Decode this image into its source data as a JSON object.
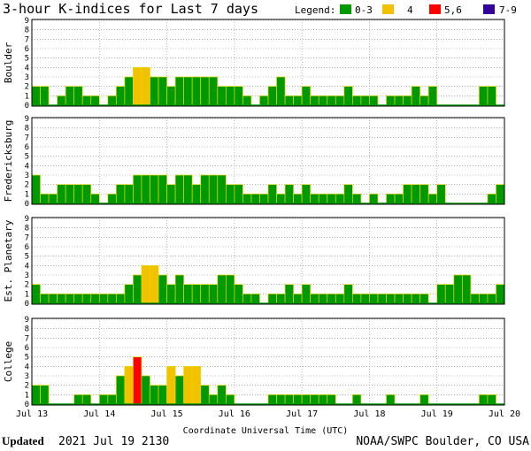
{
  "title": "3-hour K-indices for Last 7 days",
  "legend": {
    "label": "Legend:",
    "items": [
      {
        "label": "0-3",
        "color": "#009900"
      },
      {
        "label": "4",
        "color": "#f2c100"
      },
      {
        "label": "5,6",
        "color": "#ff0000"
      },
      {
        "label": "7-9",
        "color": "#330099"
      }
    ]
  },
  "footer": {
    "updated_label": "Updated",
    "updated_time": "2021 Jul 19 2130",
    "credit": "NOAA/SWPC Boulder, CO USA"
  },
  "chart_data": {
    "type": "bar",
    "xlabel": "Coordinate Universal Time (UTC)",
    "x_ticks": [
      "Jul 13",
      "Jul 14",
      "Jul 15",
      "Jul 16",
      "Jul 17",
      "Jul 18",
      "Jul 19",
      "Jul 20"
    ],
    "ylim": [
      0,
      9
    ],
    "y_ticks": [
      0,
      1,
      2,
      3,
      4,
      5,
      6,
      7,
      8,
      9
    ],
    "grid": true,
    "bars_per_day": 8,
    "series": [
      {
        "name": "Boulder",
        "values": [
          2,
          2,
          0,
          1,
          2,
          2,
          1,
          1,
          0,
          1,
          2,
          3,
          4,
          4,
          3,
          3,
          2,
          3,
          3,
          3,
          3,
          3,
          2,
          2,
          2,
          1,
          0,
          1,
          2,
          3,
          1,
          1,
          2,
          1,
          1,
          1,
          1,
          2,
          1,
          1,
          1,
          0,
          1,
          1,
          1,
          2,
          1,
          2,
          0,
          0,
          0,
          0,
          0,
          2,
          2,
          0
        ]
      },
      {
        "name": "Fredericksburg",
        "values": [
          3,
          1,
          1,
          2,
          2,
          2,
          2,
          1,
          0,
          1,
          2,
          2,
          3,
          3,
          3,
          3,
          2,
          3,
          3,
          2,
          3,
          3,
          3,
          2,
          2,
          1,
          1,
          1,
          2,
          1,
          2,
          1,
          2,
          1,
          1,
          1,
          1,
          2,
          1,
          0,
          1,
          0,
          1,
          1,
          2,
          2,
          2,
          1,
          2,
          0,
          0,
          0,
          0,
          0,
          1,
          2
        ]
      },
      {
        "name": "Est. Planetary",
        "values": [
          2,
          1,
          1,
          1,
          1,
          1,
          1,
          1,
          1,
          1,
          1,
          2,
          3,
          4,
          4,
          3,
          2,
          3,
          2,
          2,
          2,
          2,
          3,
          3,
          2,
          1,
          1,
          0,
          1,
          1,
          2,
          1,
          2,
          1,
          1,
          1,
          1,
          2,
          1,
          1,
          1,
          1,
          1,
          1,
          1,
          1,
          1,
          0,
          2,
          2,
          3,
          3,
          1,
          1,
          1,
          2
        ]
      },
      {
        "name": "College",
        "values": [
          2,
          2,
          0,
          0,
          0,
          1,
          1,
          0,
          1,
          1,
          3,
          4,
          5,
          3,
          2,
          2,
          4,
          3,
          4,
          4,
          2,
          1,
          2,
          1,
          0,
          0,
          0,
          0,
          1,
          1,
          1,
          1,
          1,
          1,
          1,
          1,
          0,
          0,
          1,
          0,
          0,
          0,
          1,
          0,
          0,
          0,
          1,
          0,
          0,
          0,
          0,
          0,
          0,
          1,
          1,
          0
        ]
      }
    ]
  }
}
